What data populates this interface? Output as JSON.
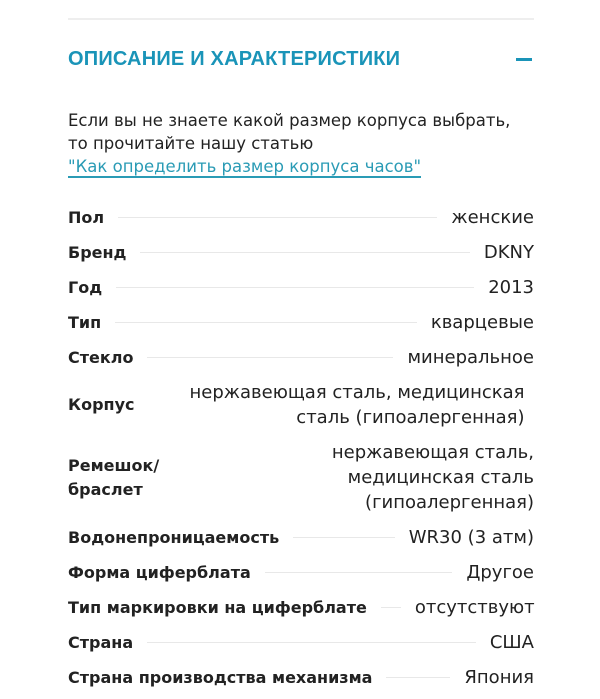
{
  "section": {
    "title": "ОПИСАНИЕ И ХАРАКТЕРИСТИКИ",
    "collapse_icon": "minus-icon",
    "accent_color": "#1a94b8"
  },
  "intro": {
    "line1": "Если вы не знаете какой размер корпуса выбрать,",
    "line2": "то прочитайте нашу статью",
    "link": "\"Как определить размер корпуса часов\""
  },
  "specs": [
    {
      "label": "Пол",
      "value": "женские"
    },
    {
      "label": "Бренд",
      "value": "DKNY"
    },
    {
      "label": "Год",
      "value": "2013"
    },
    {
      "label": "Тип",
      "value": "кварцевые"
    },
    {
      "label": "Стекло",
      "value": "минеральное"
    },
    {
      "label": "Корпус",
      "value": "нержавеющая сталь, медицинская сталь (гипоалергенная)"
    },
    {
      "label": "Ремешок/ браслет",
      "value": "нержавеющая сталь, медицинская сталь (гипоалергенная)"
    },
    {
      "label": "Водонепроницаемость",
      "value": "WR30 (3 атм)"
    },
    {
      "label": "Форма циферблата",
      "value": "Другое"
    },
    {
      "label": "Тип маркировки на циферблате",
      "value": "отсутствуют"
    },
    {
      "label": "Страна",
      "value": "США"
    },
    {
      "label": "Страна производства механизма",
      "value": "Япония"
    }
  ]
}
